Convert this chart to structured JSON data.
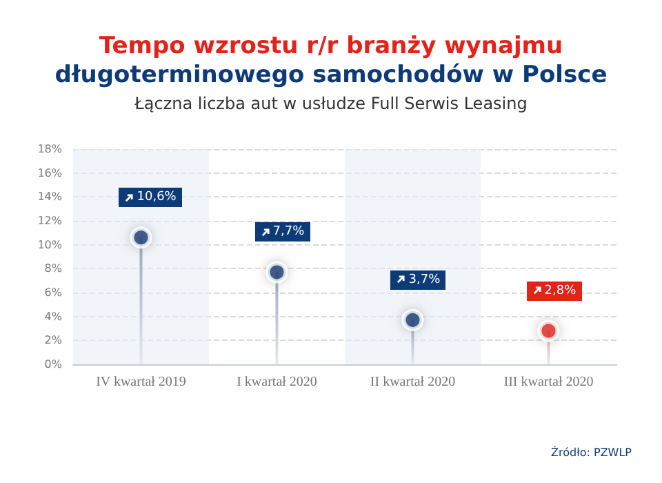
{
  "chart_data": {
    "type": "lollipop",
    "title": "Tempo wzrostu r/r branży wynajmu\ndługoterminowego samochodów w Polsce",
    "subtitle": "Łączna liczba aut w usłudze Full Serwis Leasing",
    "categories": [
      "IV kwartał 2019",
      "I kwartał 2020",
      "II kwartał 2020",
      "III kwartał 2020"
    ],
    "values": [
      10.6,
      7.7,
      3.7,
      2.8
    ],
    "colors": [
      "#0d3b78",
      "#0d3b78",
      "#0d3b78",
      "#e2231a"
    ],
    "value_labels": [
      "10,6%",
      "7,7%",
      "3,7%",
      "2,8%"
    ],
    "ylim": [
      0,
      18
    ],
    "yticks": [
      {
        "value": 0,
        "label": "0%"
      },
      {
        "value": 2,
        "label": "2%"
      },
      {
        "value": 4,
        "label": "4%"
      },
      {
        "value": 6,
        "label": "6%"
      },
      {
        "value": 8,
        "label": "8%"
      },
      {
        "value": 10,
        "label": "10%"
      },
      {
        "value": 12,
        "label": "12%"
      },
      {
        "value": 14,
        "label": "14%"
      },
      {
        "value": 16,
        "label": "16%"
      },
      {
        "value": 18,
        "label": "18%"
      }
    ],
    "grid": "y",
    "marker": "circle",
    "annotations": [
      "Źródło: PZWLP"
    ]
  }
}
